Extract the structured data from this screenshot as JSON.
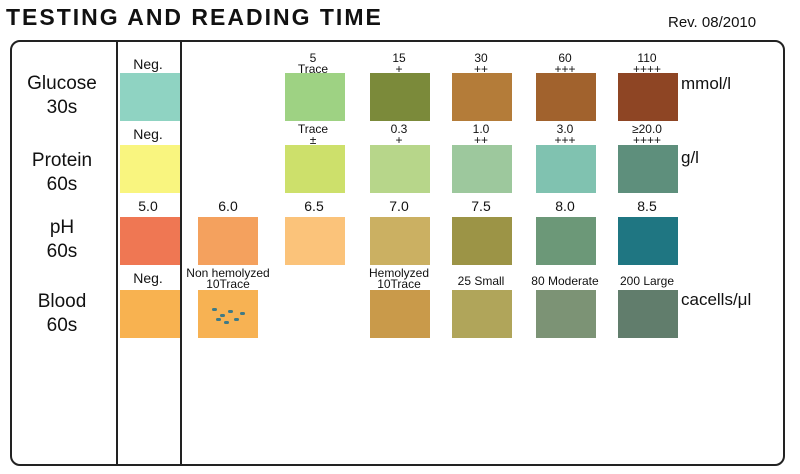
{
  "header": {
    "title": "TESTING AND READING TIME",
    "revision": "Rev. 08/2010"
  },
  "rows": [
    {
      "name": "Glucose",
      "time": "30s",
      "unit": "mmol/l"
    },
    {
      "name": "Protein",
      "time": "60s",
      "unit": "g/l"
    },
    {
      "name": "pH",
      "time": "60s",
      "unit": ""
    },
    {
      "name": "Blood",
      "time": "60s",
      "unit": "cacells/μl"
    }
  ],
  "glucose": [
    {
      "top": "Neg.",
      "bottom": "",
      "color": "#8fd3c2"
    },
    {
      "top": "5",
      "bottom": "Trace",
      "color": "#9ed283"
    },
    {
      "top": "15",
      "bottom": "+",
      "color": "#7b8a3a"
    },
    {
      "top": "30",
      "bottom": "++",
      "color": "#b47c39"
    },
    {
      "top": "60",
      "bottom": "+++",
      "color": "#a1622d"
    },
    {
      "top": "110",
      "bottom": "++++",
      "color": "#8e4524"
    }
  ],
  "protein": [
    {
      "top": "Neg.",
      "bottom": "",
      "color": "#f9f57f"
    },
    {
      "top": "Trace",
      "bottom": "±",
      "color": "#cde06b"
    },
    {
      "top": "0.3",
      "bottom": "+",
      "color": "#b7d68a"
    },
    {
      "top": "1.0",
      "bottom": "++",
      "color": "#9dc89d"
    },
    {
      "top": "3.0",
      "bottom": "+++",
      "color": "#80c2b0"
    },
    {
      "top": "≥20.0",
      "bottom": "++++",
      "color": "#5e8f7c"
    }
  ],
  "ph": [
    {
      "label": "5.0",
      "color": "#ef7753"
    },
    {
      "label": "6.0",
      "color": "#f4a15e"
    },
    {
      "label": "6.5",
      "color": "#fbc37a"
    },
    {
      "label": "7.0",
      "color": "#cbb062"
    },
    {
      "label": "7.5",
      "color": "#9c9446"
    },
    {
      "label": "8.0",
      "color": "#6c9878"
    },
    {
      "label": "8.5",
      "color": "#1f7682"
    }
  ],
  "blood": [
    {
      "top": "Neg.",
      "bottom": "",
      "color": "#f8b250"
    },
    {
      "top": "Non hemolyzed",
      "bottom": "10Trace",
      "color": "#f7b253"
    },
    {
      "top": "Hemolyzed",
      "bottom": "10Trace",
      "color": "#c99a4a"
    },
    {
      "top": "",
      "bottom": "25 Small",
      "color": "#b0a55a"
    },
    {
      "top": "",
      "bottom": "80 Moderate",
      "color": "#7c9375"
    },
    {
      "top": "",
      "bottom": "200 Large",
      "color": "#617d6c"
    }
  ]
}
